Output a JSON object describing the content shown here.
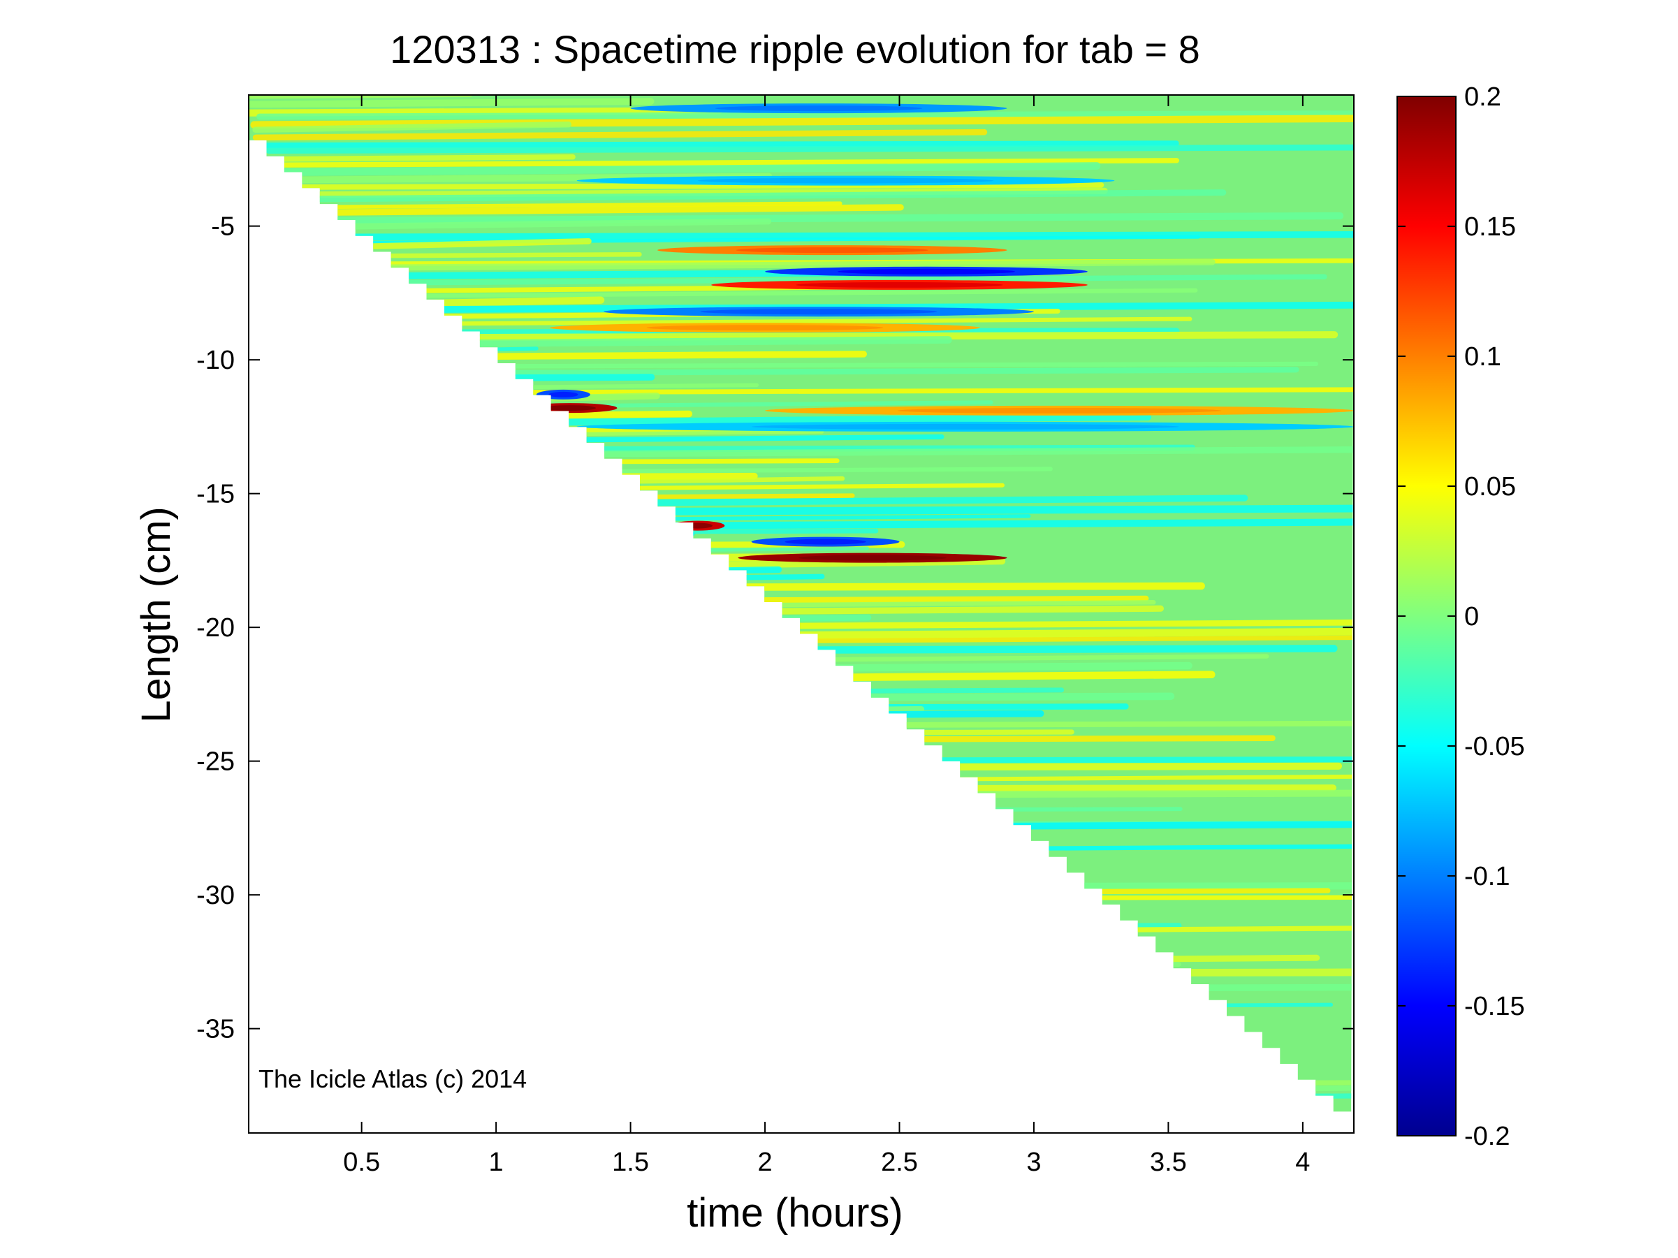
{
  "chart_data": {
    "type": "heatmap",
    "title": "120313 : Spacetime ripple evolution for tab = 8",
    "xlabel": "time (hours)",
    "ylabel": "Length (cm)",
    "xlim": [
      0.08,
      4.19
    ],
    "ylim": [
      -38.9,
      -0.1
    ],
    "x_ticks": [
      0.5,
      1,
      1.5,
      2,
      2.5,
      3,
      3.5,
      4
    ],
    "x_tick_labels": [
      "0.5",
      "1",
      "1.5",
      "2",
      "2.5",
      "3",
      "3.5",
      "4"
    ],
    "y_ticks": [
      -5,
      -10,
      -15,
      -20,
      -25,
      -30,
      -35
    ],
    "y_tick_labels": [
      "-5",
      "-10",
      "-15",
      "-20",
      "-25",
      "-30",
      "-35"
    ],
    "grid": false,
    "colormap": "jet",
    "colorbar": {
      "range": [
        -0.2,
        0.2
      ],
      "ticks": [
        0.2,
        0.15,
        0.1,
        0.05,
        0,
        -0.05,
        -0.1,
        -0.15,
        -0.2
      ],
      "tick_labels": [
        "0.2",
        "0.15",
        "0.1",
        "0.05",
        "0",
        "-0.05",
        "-0.1",
        "-0.15",
        "-0.2"
      ],
      "placement": "right"
    },
    "data_front": {
      "description_start": [
        0.08,
        -1.2
      ],
      "description_end": [
        4.18,
        -38.1
      ]
    },
    "features": [
      {
        "t_start": 1.1,
        "t_end": 1.45,
        "length": -11.8,
        "value": 0.18
      },
      {
        "t_start": 1.15,
        "t_end": 1.35,
        "length": -11.3,
        "value": -0.12
      },
      {
        "t_start": 1.65,
        "t_end": 1.85,
        "length": -16.2,
        "value": 0.17
      },
      {
        "t_start": 1.9,
        "t_end": 2.9,
        "length": -17.4,
        "value": 0.19
      },
      {
        "t_start": 1.95,
        "t_end": 2.5,
        "length": -16.8,
        "value": -0.12
      },
      {
        "t_start": 2.0,
        "t_end": 3.2,
        "length": -6.7,
        "value": -0.13
      },
      {
        "t_start": 1.8,
        "t_end": 3.2,
        "length": -7.2,
        "value": 0.14
      },
      {
        "t_start": 1.6,
        "t_end": 2.9,
        "length": -5.9,
        "value": 0.1
      },
      {
        "t_start": 1.4,
        "t_end": 3.0,
        "length": -8.2,
        "value": -0.1
      },
      {
        "t_start": 1.2,
        "t_end": 2.8,
        "length": -8.8,
        "value": 0.08
      },
      {
        "t_start": 1.3,
        "t_end": 4.19,
        "length": -12.5,
        "value": -0.07
      },
      {
        "t_start": 2.0,
        "t_end": 4.19,
        "length": -11.9,
        "value": 0.08
      },
      {
        "t_start": 1.5,
        "t_end": 2.9,
        "length": -0.6,
        "value": -0.09
      },
      {
        "t_start": 1.3,
        "t_end": 3.3,
        "length": -3.3,
        "value": -0.07
      }
    ]
  },
  "watermark": "The Icicle Atlas (c) 2014"
}
